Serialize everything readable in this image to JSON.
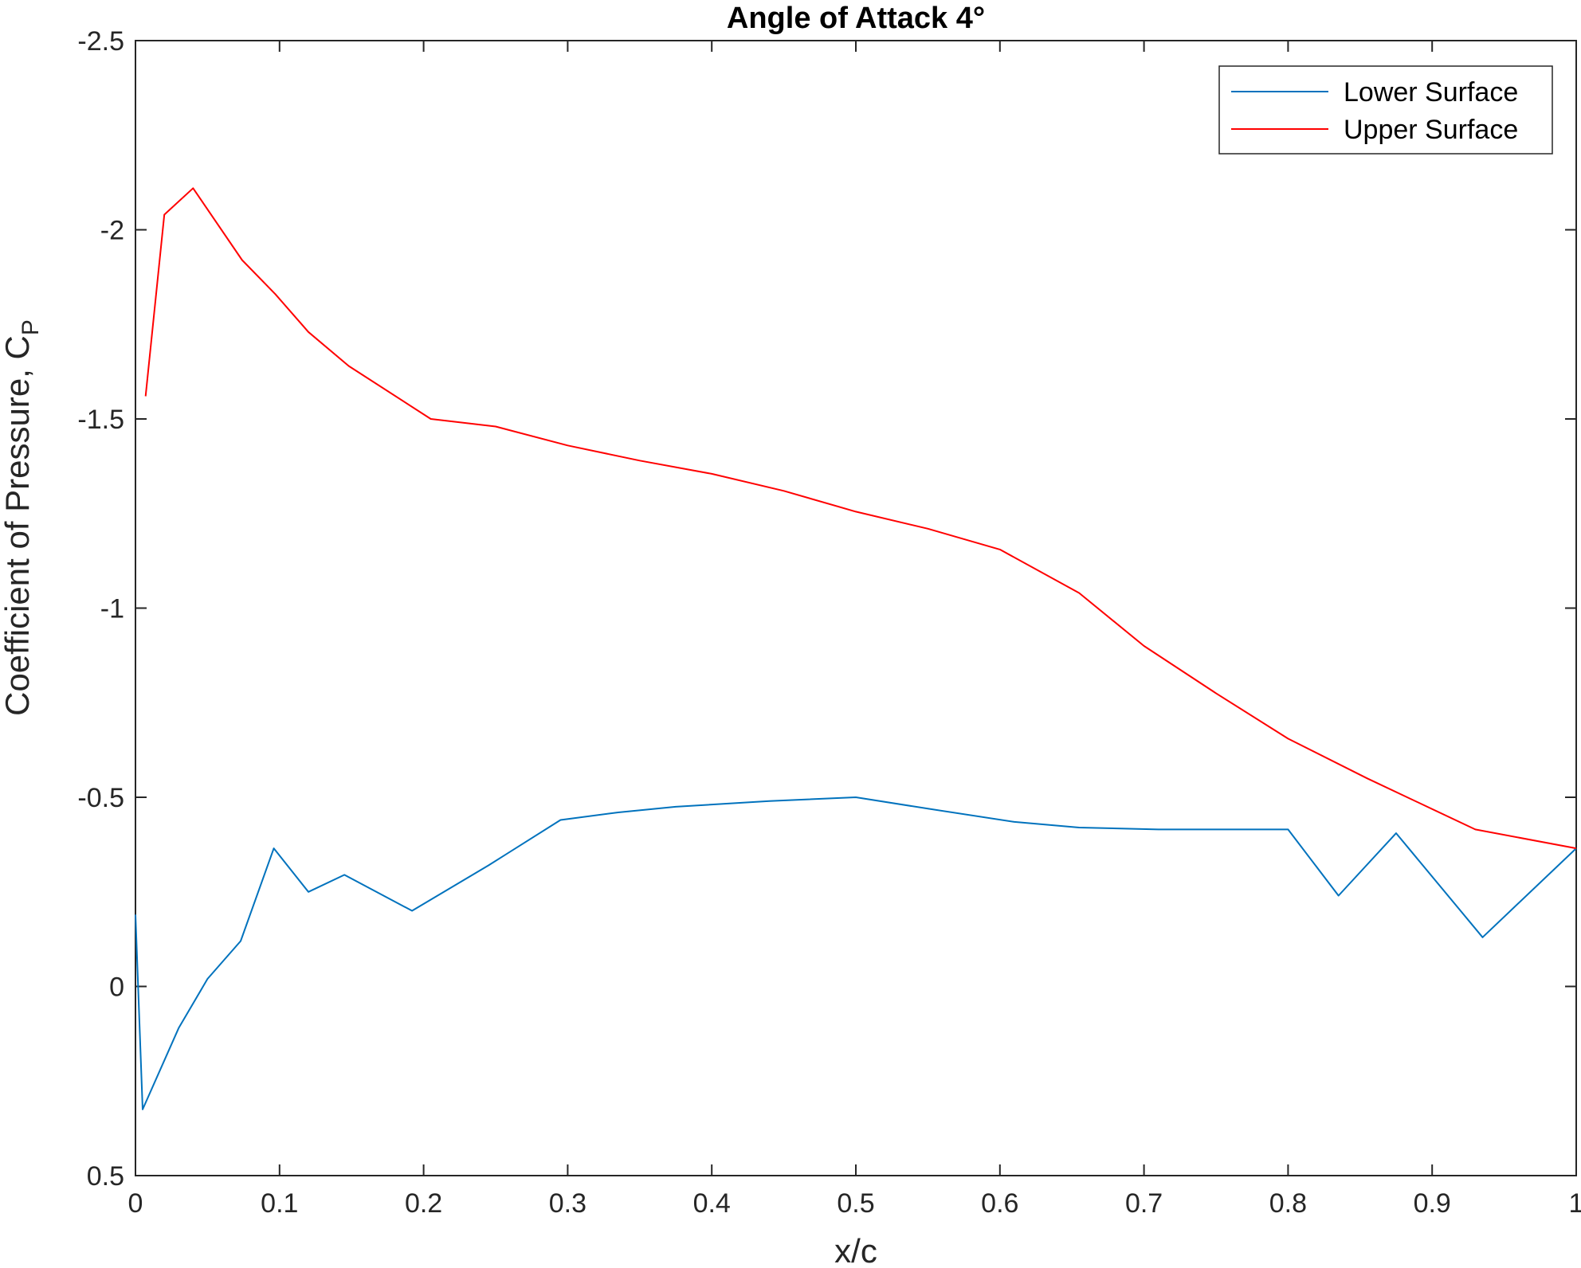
{
  "chart_data": {
    "type": "line",
    "title": "Angle of Attack 4°",
    "xlabel": "x/c",
    "ylabel_main": "Coefficient of Pressure, C",
    "ylabel_subscript": "P",
    "xlim": [
      0,
      1
    ],
    "ylim": [
      -2.5,
      0.5
    ],
    "y_reversed": true,
    "x_ticks": [
      0,
      0.1,
      0.2,
      0.3,
      0.4,
      0.5,
      0.6,
      0.7,
      0.8,
      0.9,
      1
    ],
    "x_tick_labels": [
      "0",
      "0.1",
      "0.2",
      "0.3",
      "0.4",
      "0.5",
      "0.6",
      "0.7",
      "0.8",
      "0.9",
      "1"
    ],
    "y_ticks": [
      -2.5,
      -2,
      -1.5,
      -1,
      -0.5,
      0,
      0.5
    ],
    "y_tick_labels": [
      "-2.5",
      "-2",
      "-1.5",
      "-1",
      "-0.5",
      "0",
      "0.5"
    ],
    "grid": false,
    "legend_location": "top-right",
    "series": [
      {
        "name": "Lower Surface",
        "color": "#0072BD",
        "x": [
          0,
          0.005,
          0.03,
          0.05,
          0.073,
          0.096,
          0.12,
          0.145,
          0.192,
          0.245,
          0.295,
          0.335,
          0.375,
          0.44,
          0.5,
          0.55,
          0.61,
          0.655,
          0.71,
          0.8,
          0.835,
          0.875,
          0.935,
          1
        ],
        "y": [
          -0.19,
          0.325,
          0.11,
          -0.02,
          -0.12,
          -0.365,
          -0.25,
          -0.295,
          -0.2,
          -0.32,
          -0.44,
          -0.46,
          -0.475,
          -0.49,
          -0.5,
          -0.47,
          -0.435,
          -0.42,
          -0.415,
          -0.415,
          -0.24,
          -0.405,
          -0.13,
          -0.365
        ]
      },
      {
        "name": "Upper Surface",
        "color": "#FF0000",
        "x": [
          0.007,
          0.02,
          0.04,
          0.074,
          0.097,
          0.12,
          0.148,
          0.205,
          0.25,
          0.3,
          0.35,
          0.4,
          0.45,
          0.5,
          0.55,
          0.6,
          0.655,
          0.7,
          0.75,
          0.8,
          0.855,
          0.93,
          1
        ],
        "y": [
          -1.56,
          -2.04,
          -2.11,
          -1.92,
          -1.83,
          -1.73,
          -1.64,
          -1.5,
          -1.48,
          -1.43,
          -1.39,
          -1.355,
          -1.31,
          -1.255,
          -1.21,
          -1.155,
          -1.04,
          -0.9,
          -0.775,
          -0.655,
          -0.55,
          -0.415,
          -0.365
        ]
      }
    ]
  }
}
